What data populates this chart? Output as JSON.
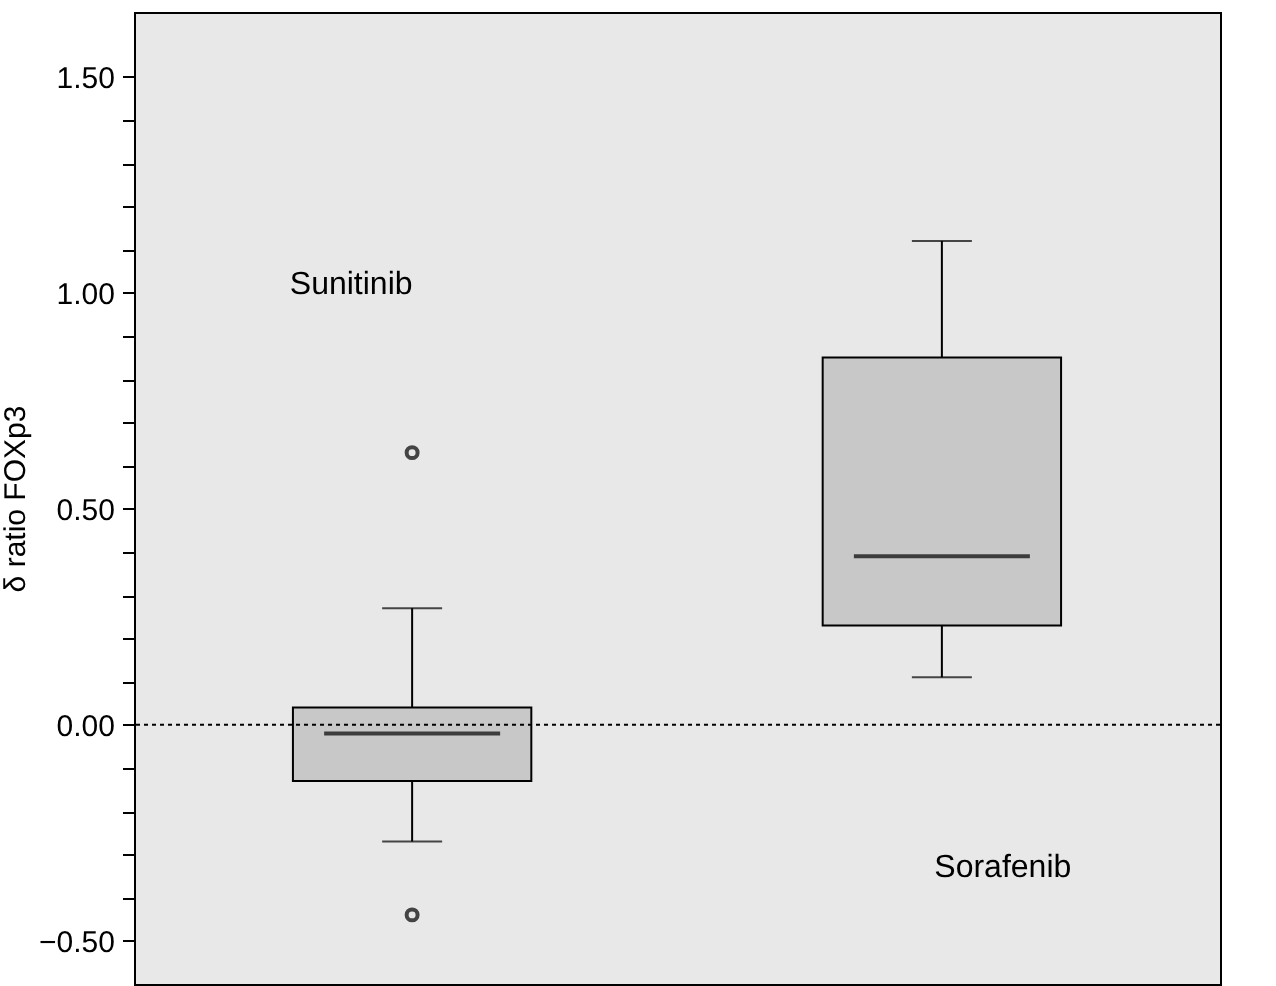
{
  "chart_data": {
    "type": "box",
    "ylabel": "δ ratio FOXp3",
    "categories": [
      null,
      null
    ],
    "boxes": [
      {
        "low": -0.27,
        "q1": -0.13,
        "median": -0.02,
        "q3": 0.04,
        "high": 0.27,
        "outliers": [
          0.63,
          -0.44
        ]
      },
      {
        "low": 0.11,
        "q1": 0.23,
        "median": 0.39,
        "q3": 0.85,
        "high": 1.12
      }
    ],
    "color": "#c8c8c8",
    "ylim": [
      -0.6,
      1.65
    ],
    "yticks": [
      {
        "value": -0.5,
        "label": "−0.50"
      },
      {
        "value": -0.4,
        "label": null
      },
      {
        "value": -0.3,
        "label": null
      },
      {
        "value": -0.2,
        "label": null
      },
      {
        "value": -0.1,
        "label": null
      },
      {
        "value": 0,
        "label": "0.00"
      },
      {
        "value": 0.1,
        "label": null
      },
      {
        "value": 0.2,
        "label": null
      },
      {
        "value": 0.3,
        "label": null
      },
      {
        "value": 0.4,
        "label": null
      },
      {
        "value": 0.5,
        "label": "0.50"
      },
      {
        "value": 0.6,
        "label": null
      },
      {
        "value": 0.7,
        "label": null
      },
      {
        "value": 0.8,
        "label": null
      },
      {
        "value": 0.9,
        "label": null
      },
      {
        "value": 1,
        "label": "1.00"
      },
      {
        "value": 1.1,
        "label": null
      },
      {
        "value": 1.2,
        "label": null
      },
      {
        "value": 1.3,
        "label": null
      },
      {
        "value": 1.4,
        "label": null
      },
      {
        "value": 1.5,
        "label": "1.50"
      }
    ],
    "ref_lines": [
      {
        "axis": "y",
        "value": 0,
        "line_style": "dotted"
      }
    ],
    "annotations": [
      "Sunitinib",
      "Sorafenib"
    ],
    "grid": false,
    "tick_labels": "y"
  }
}
